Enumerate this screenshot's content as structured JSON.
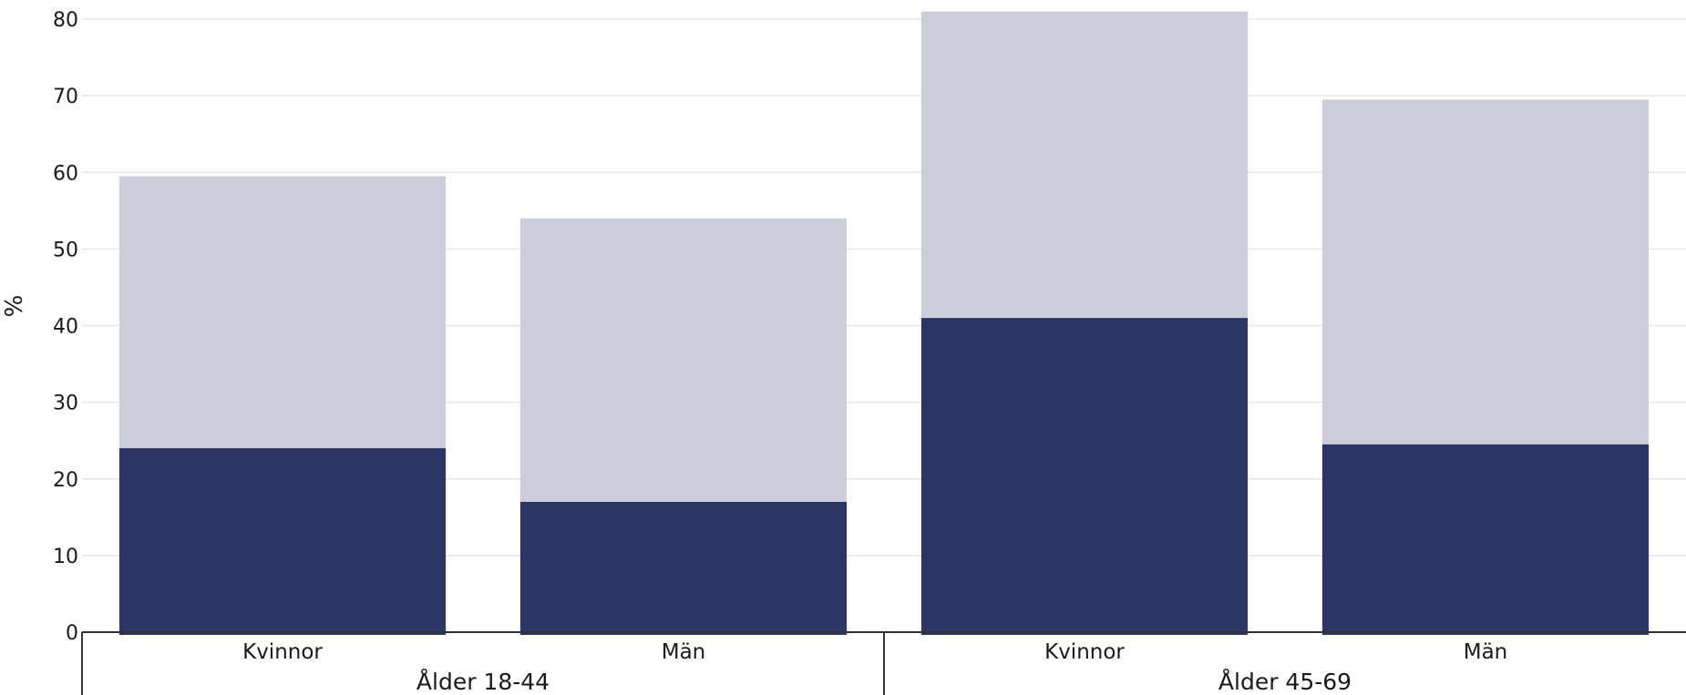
{
  "chart_data": {
    "type": "bar",
    "stacked": "overlay",
    "ylabel": "%",
    "ylim": [
      0,
      80
    ],
    "yticks": [
      0,
      10,
      20,
      30,
      40,
      50,
      60,
      70,
      80
    ],
    "grid": true,
    "groups": [
      {
        "label": "Ålder 18-44",
        "categories": [
          "Kvinnor",
          "Män"
        ]
      },
      {
        "label": "Ålder 45-69",
        "categories": [
          "Kvinnor",
          "Män"
        ]
      }
    ],
    "categories": [
      "Kvinnor",
      "Män",
      "Kvinnor",
      "Män"
    ],
    "series": [
      {
        "values": [
          59.5,
          54,
          81,
          69.5
        ],
        "color": "#cbcdd9"
      },
      {
        "values": [
          24,
          17,
          41,
          24.5
        ],
        "color": "#2b3664"
      }
    ]
  }
}
